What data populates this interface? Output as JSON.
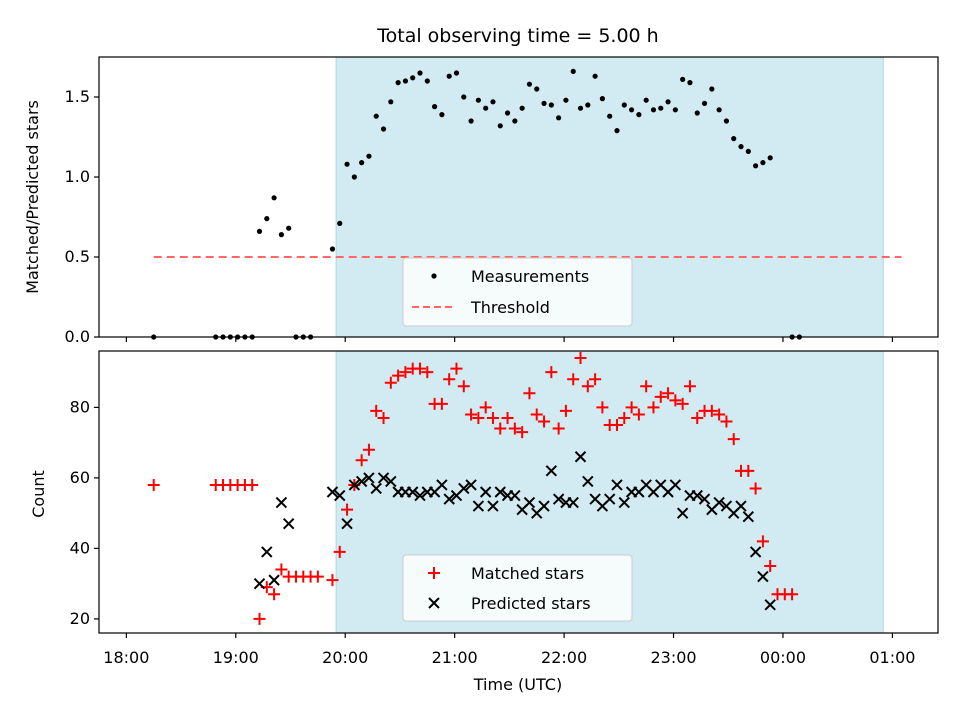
{
  "title": "Total observing time = 5.00 h",
  "colors": {
    "span": "#add8e6",
    "measurement": "#000000",
    "threshold": "#ff6666",
    "matched": "#ff0000",
    "predicted": "#000000"
  },
  "chart_data": [
    {
      "type": "scatter",
      "panel": "top",
      "title": "Total observing time = 5.00 h",
      "xlabel": "",
      "ylabel": "Matched/Predicted stars",
      "xlim": [
        "17:45",
        "25:25"
      ],
      "ylim": [
        0,
        1.75
      ],
      "yticks": [
        0.0,
        0.5,
        1.0,
        1.5
      ],
      "ytick_labels": [
        "0.0",
        "0.5",
        "1.0",
        "1.5"
      ],
      "observing_window": [
        "19:55",
        "24:55"
      ],
      "legend": {
        "position": "lower center",
        "entries": [
          "Measurements",
          "Threshold"
        ]
      },
      "threshold": {
        "name": "Threshold",
        "y": 0.5,
        "x_range": [
          "18:15",
          "25:05"
        ]
      },
      "series": [
        {
          "name": "Measurements",
          "points": [
            [
              "18:15",
              0.0
            ],
            [
              "18:49",
              0.0
            ],
            [
              "18:53",
              0.0
            ],
            [
              "18:57",
              0.0
            ],
            [
              "19:01",
              0.0
            ],
            [
              "19:05",
              0.0
            ],
            [
              "19:09",
              0.0
            ],
            [
              "19:13",
              0.66
            ],
            [
              "19:17",
              0.74
            ],
            [
              "19:21",
              0.87
            ],
            [
              "19:25",
              0.64
            ],
            [
              "19:29",
              0.68
            ],
            [
              "19:33",
              0.0
            ],
            [
              "19:37",
              0.0
            ],
            [
              "19:41",
              0.0
            ],
            [
              "19:53",
              0.55
            ],
            [
              "19:57",
              0.71
            ],
            [
              "20:01",
              1.08
            ],
            [
              "20:05",
              1.0
            ],
            [
              "20:09",
              1.09
            ],
            [
              "20:13",
              1.13
            ],
            [
              "20:17",
              1.38
            ],
            [
              "20:21",
              1.3
            ],
            [
              "20:25",
              1.47
            ],
            [
              "20:29",
              1.59
            ],
            [
              "20:33",
              1.6
            ],
            [
              "20:37",
              1.62
            ],
            [
              "20:41",
              1.65
            ],
            [
              "20:45",
              1.6
            ],
            [
              "20:49",
              1.44
            ],
            [
              "20:53",
              1.39
            ],
            [
              "20:57",
              1.63
            ],
            [
              "21:01",
              1.65
            ],
            [
              "21:05",
              1.5
            ],
            [
              "21:09",
              1.35
            ],
            [
              "21:13",
              1.48
            ],
            [
              "21:17",
              1.43
            ],
            [
              "21:21",
              1.47
            ],
            [
              "21:25",
              1.32
            ],
            [
              "21:29",
              1.4
            ],
            [
              "21:33",
              1.35
            ],
            [
              "21:37",
              1.43
            ],
            [
              "21:41",
              1.58
            ],
            [
              "21:45",
              1.55
            ],
            [
              "21:49",
              1.46
            ],
            [
              "21:53",
              1.45
            ],
            [
              "21:57",
              1.37
            ],
            [
              "22:01",
              1.48
            ],
            [
              "22:05",
              1.66
            ],
            [
              "22:09",
              1.43
            ],
            [
              "22:13",
              1.45
            ],
            [
              "22:17",
              1.63
            ],
            [
              "22:21",
              1.49
            ],
            [
              "22:25",
              1.38
            ],
            [
              "22:29",
              1.29
            ],
            [
              "22:33",
              1.45
            ],
            [
              "22:37",
              1.42
            ],
            [
              "22:41",
              1.39
            ],
            [
              "22:45",
              1.48
            ],
            [
              "22:49",
              1.42
            ],
            [
              "22:53",
              1.43
            ],
            [
              "22:57",
              1.47
            ],
            [
              "23:01",
              1.42
            ],
            [
              "23:05",
              1.61
            ],
            [
              "23:09",
              1.59
            ],
            [
              "23:13",
              1.4
            ],
            [
              "23:17",
              1.46
            ],
            [
              "23:21",
              1.55
            ],
            [
              "23:25",
              1.42
            ],
            [
              "23:29",
              1.35
            ],
            [
              "23:33",
              1.24
            ],
            [
              "23:37",
              1.19
            ],
            [
              "23:41",
              1.16
            ],
            [
              "23:45",
              1.07
            ],
            [
              "23:49",
              1.09
            ],
            [
              "23:53",
              1.12
            ],
            [
              "24:05",
              0.0
            ],
            [
              "24:09",
              0.0
            ]
          ]
        }
      ]
    },
    {
      "type": "scatter",
      "panel": "bottom",
      "xlabel": "Time (UTC)",
      "ylabel": "Count",
      "xlim": [
        "17:45",
        "25:25"
      ],
      "ylim": [
        16,
        96
      ],
      "yticks": [
        20,
        40,
        60,
        80
      ],
      "ytick_labels": [
        "20",
        "40",
        "60",
        "80"
      ],
      "xticks": [
        "18:00",
        "19:00",
        "20:00",
        "21:00",
        "22:00",
        "23:00",
        "24:00",
        "25:00"
      ],
      "xtick_labels": [
        "18:00",
        "19:00",
        "20:00",
        "21:00",
        "22:00",
        "23:00",
        "00:00",
        "01:00"
      ],
      "observing_window": [
        "19:55",
        "24:55"
      ],
      "legend": {
        "position": "lower center",
        "entries": [
          "Matched stars",
          "Predicted stars"
        ]
      },
      "series": [
        {
          "name": "Matched stars",
          "marker": "plus",
          "points": [
            [
              "18:15",
              58
            ],
            [
              "18:49",
              58
            ],
            [
              "18:53",
              58
            ],
            [
              "18:57",
              58
            ],
            [
              "19:01",
              58
            ],
            [
              "19:05",
              58
            ],
            [
              "19:09",
              58
            ],
            [
              "19:13",
              20
            ],
            [
              "19:17",
              29
            ],
            [
              "19:21",
              27
            ],
            [
              "19:25",
              34
            ],
            [
              "19:29",
              32
            ],
            [
              "19:33",
              32
            ],
            [
              "19:37",
              32
            ],
            [
              "19:41",
              32
            ],
            [
              "19:45",
              32
            ],
            [
              "19:53",
              31
            ],
            [
              "19:57",
              39
            ],
            [
              "20:01",
              51
            ],
            [
              "20:05",
              58
            ],
            [
              "20:09",
              65
            ],
            [
              "20:13",
              68
            ],
            [
              "20:17",
              79
            ],
            [
              "20:21",
              77
            ],
            [
              "20:25",
              87
            ],
            [
              "20:29",
              89
            ],
            [
              "20:33",
              90
            ],
            [
              "20:37",
              91
            ],
            [
              "20:41",
              91
            ],
            [
              "20:45",
              90
            ],
            [
              "20:49",
              81
            ],
            [
              "20:53",
              81
            ],
            [
              "20:57",
              88
            ],
            [
              "21:01",
              91
            ],
            [
              "21:05",
              86
            ],
            [
              "21:09",
              78
            ],
            [
              "21:13",
              77
            ],
            [
              "21:17",
              80
            ],
            [
              "21:21",
              77
            ],
            [
              "21:25",
              74
            ],
            [
              "21:29",
              77
            ],
            [
              "21:33",
              74
            ],
            [
              "21:37",
              73
            ],
            [
              "21:41",
              84
            ],
            [
              "21:45",
              78
            ],
            [
              "21:49",
              76
            ],
            [
              "21:53",
              90
            ],
            [
              "21:57",
              74
            ],
            [
              "22:01",
              79
            ],
            [
              "22:05",
              88
            ],
            [
              "22:09",
              94
            ],
            [
              "22:13",
              86
            ],
            [
              "22:17",
              88
            ],
            [
              "22:21",
              80
            ],
            [
              "22:25",
              75
            ],
            [
              "22:29",
              75
            ],
            [
              "22:33",
              77
            ],
            [
              "22:37",
              80
            ],
            [
              "22:41",
              78
            ],
            [
              "22:45",
              86
            ],
            [
              "22:49",
              80
            ],
            [
              "22:53",
              83
            ],
            [
              "22:57",
              84
            ],
            [
              "23:01",
              82
            ],
            [
              "23:05",
              81
            ],
            [
              "23:09",
              86
            ],
            [
              "23:13",
              77
            ],
            [
              "23:17",
              79
            ],
            [
              "23:21",
              79
            ],
            [
              "23:25",
              78
            ],
            [
              "23:29",
              76
            ],
            [
              "23:33",
              71
            ],
            [
              "23:37",
              62
            ],
            [
              "23:41",
              62
            ],
            [
              "23:45",
              57
            ],
            [
              "23:49",
              42
            ],
            [
              "23:53",
              35
            ],
            [
              "23:57",
              27
            ],
            [
              "24:01",
              27
            ],
            [
              "24:05",
              27
            ]
          ]
        },
        {
          "name": "Predicted stars",
          "marker": "x",
          "points": [
            [
              "19:13",
              30
            ],
            [
              "19:17",
              39
            ],
            [
              "19:21",
              31
            ],
            [
              "19:25",
              53
            ],
            [
              "19:29",
              47
            ],
            [
              "19:53",
              56
            ],
            [
              "19:57",
              55
            ],
            [
              "20:01",
              47
            ],
            [
              "20:05",
              58
            ],
            [
              "20:09",
              59
            ],
            [
              "20:13",
              60
            ],
            [
              "20:17",
              57
            ],
            [
              "20:21",
              60
            ],
            [
              "20:25",
              59
            ],
            [
              "20:29",
              56
            ],
            [
              "20:33",
              56
            ],
            [
              "20:37",
              56
            ],
            [
              "20:41",
              55
            ],
            [
              "20:45",
              56
            ],
            [
              "20:49",
              56
            ],
            [
              "20:53",
              58
            ],
            [
              "20:57",
              54
            ],
            [
              "21:01",
              55
            ],
            [
              "21:05",
              57
            ],
            [
              "21:09",
              58
            ],
            [
              "21:13",
              52
            ],
            [
              "21:17",
              56
            ],
            [
              "21:21",
              52
            ],
            [
              "21:25",
              56
            ],
            [
              "21:29",
              55
            ],
            [
              "21:33",
              55
            ],
            [
              "21:37",
              51
            ],
            [
              "21:41",
              53
            ],
            [
              "21:45",
              50
            ],
            [
              "21:49",
              52
            ],
            [
              "21:53",
              62
            ],
            [
              "21:57",
              54
            ],
            [
              "22:01",
              53
            ],
            [
              "22:05",
              53
            ],
            [
              "22:09",
              66
            ],
            [
              "22:13",
              59
            ],
            [
              "22:17",
              54
            ],
            [
              "22:21",
              52
            ],
            [
              "22:25",
              54
            ],
            [
              "22:29",
              58
            ],
            [
              "22:33",
              53
            ],
            [
              "22:37",
              56
            ],
            [
              "22:41",
              56
            ],
            [
              "22:45",
              58
            ],
            [
              "22:49",
              56
            ],
            [
              "22:53",
              58
            ],
            [
              "22:57",
              56
            ],
            [
              "23:01",
              58
            ],
            [
              "23:05",
              50
            ],
            [
              "23:09",
              55
            ],
            [
              "23:13",
              55
            ],
            [
              "23:17",
              54
            ],
            [
              "23:21",
              51
            ],
            [
              "23:25",
              53
            ],
            [
              "23:29",
              52
            ],
            [
              "23:33",
              50
            ],
            [
              "23:37",
              52
            ],
            [
              "23:41",
              49
            ],
            [
              "23:45",
              39
            ],
            [
              "23:49",
              32
            ],
            [
              "23:53",
              24
            ]
          ]
        }
      ]
    }
  ]
}
